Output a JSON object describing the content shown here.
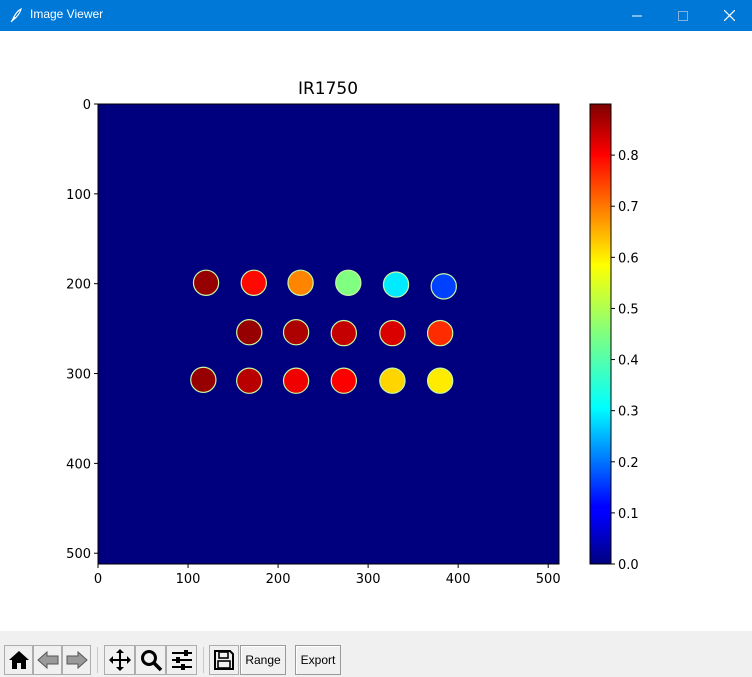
{
  "window": {
    "title": "Image Viewer"
  },
  "chart_data": {
    "type": "heatmap",
    "title": "IR1750",
    "x_ticks": [
      "0",
      "100",
      "200",
      "300",
      "400",
      "500"
    ],
    "y_ticks": [
      "0",
      "100",
      "200",
      "300",
      "400",
      "500"
    ],
    "colorbar_ticks": [
      "0.0",
      "0.1",
      "0.2",
      "0.3",
      "0.4",
      "0.5",
      "0.6",
      "0.7",
      "0.8"
    ],
    "xlim": [
      0,
      512
    ],
    "ylim": [
      512,
      0
    ],
    "clim": [
      0,
      0.9
    ],
    "colormap": "jet",
    "background_value": 0,
    "spots": [
      {
        "x": 120,
        "y": 199,
        "value": 0.88
      },
      {
        "x": 173,
        "y": 199,
        "value": 0.78
      },
      {
        "x": 225,
        "y": 199,
        "value": 0.67
      },
      {
        "x": 278,
        "y": 199,
        "value": 0.45
      },
      {
        "x": 331,
        "y": 201,
        "value": 0.32
      },
      {
        "x": 384,
        "y": 203,
        "value": 0.17
      },
      {
        "x": 168,
        "y": 254,
        "value": 0.88
      },
      {
        "x": 220,
        "y": 254,
        "value": 0.86
      },
      {
        "x": 273,
        "y": 255,
        "value": 0.84
      },
      {
        "x": 327,
        "y": 255,
        "value": 0.82
      },
      {
        "x": 380,
        "y": 255,
        "value": 0.75
      },
      {
        "x": 117,
        "y": 307,
        "value": 0.88
      },
      {
        "x": 168,
        "y": 308,
        "value": 0.85
      },
      {
        "x": 220,
        "y": 308,
        "value": 0.8
      },
      {
        "x": 273,
        "y": 308,
        "value": 0.79
      },
      {
        "x": 327,
        "y": 308,
        "value": 0.6
      },
      {
        "x": 380,
        "y": 308,
        "value": 0.58
      }
    ],
    "spot_radius": 14
  },
  "toolbar": {
    "home_icon": "home-icon",
    "back_icon": "back-arrow-icon",
    "forward_icon": "forward-arrow-icon",
    "pan_icon": "pan-move-icon",
    "zoom_icon": "zoom-magnifier-icon",
    "configure_icon": "configure-subplots-icon",
    "save_icon": "save-floppy-icon",
    "range_label": "Range",
    "export_label": "Export"
  }
}
